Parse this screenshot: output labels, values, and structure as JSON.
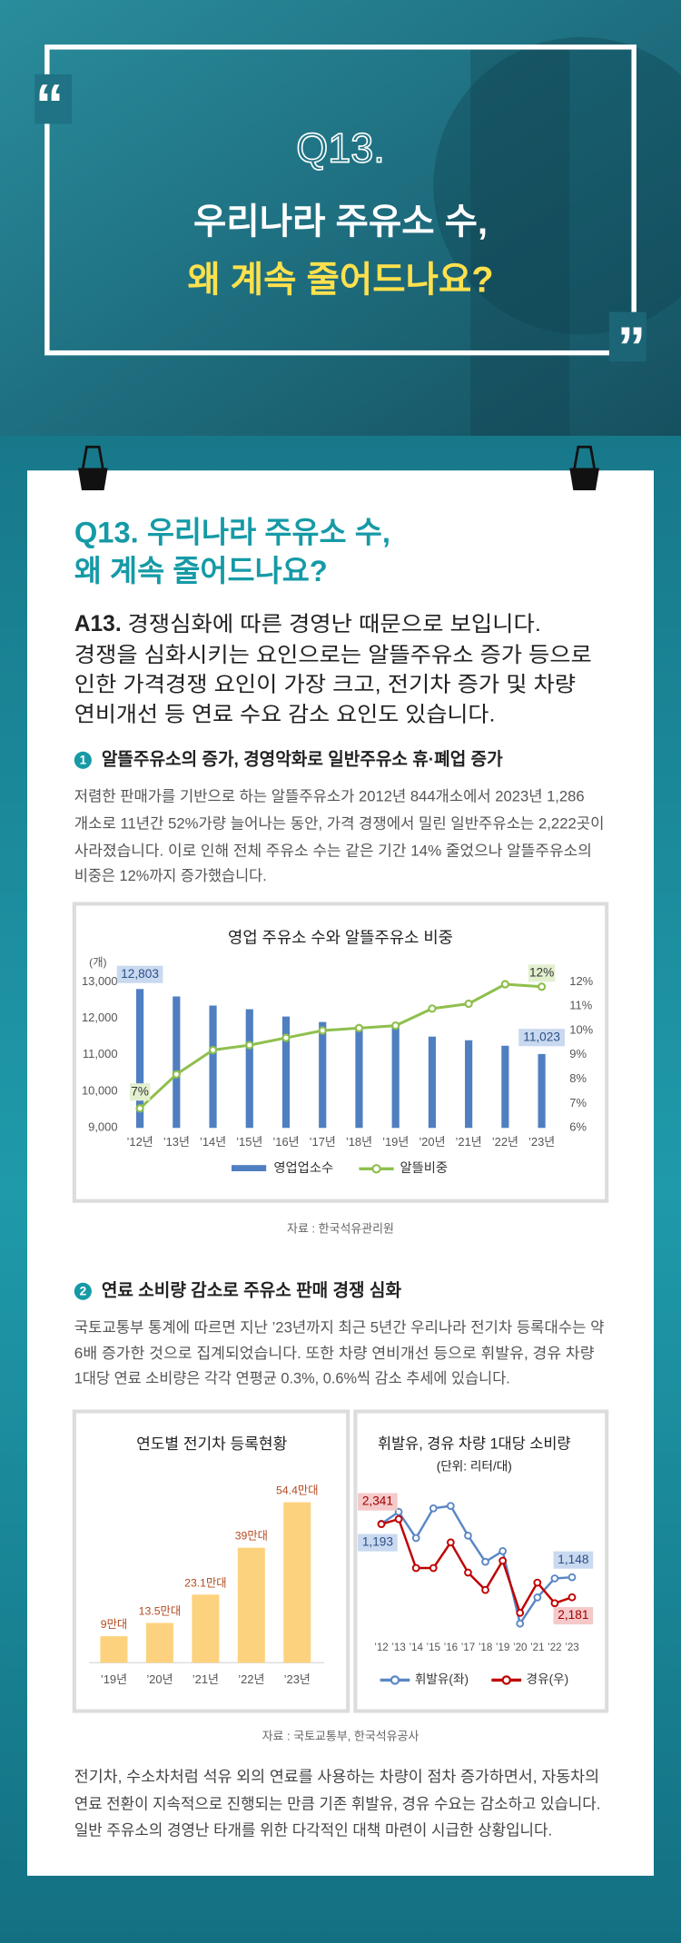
{
  "header": {
    "q": "Q13.",
    "title": [
      "우리나라 주유소 수,",
      "왜 계속 줄어드나요?"
    ]
  },
  "card": {
    "heading": [
      "Q13. 우리나라 주유소 수,",
      "왜 계속 줄어드나요?"
    ],
    "answer": {
      "label": "A13.",
      "lines": [
        "경쟁심화에 따른 경영난 때문으로 보입니다.",
        "경쟁을 심화시키는 요인으로는 알뜰주유소 증가 등으로",
        "인한 가격경쟁 요인이 가장 크고, 전기차 증가 및 차량",
        "연비개선 등 연료 수요 감소 요인도 있습니다."
      ]
    },
    "sections": [
      {
        "number": "1",
        "title": "알뜰주유소의 증가, 경영악화로 일반주유소 휴·폐업 증가",
        "lines": [
          "저렴한 판매가를 기반으로 하는 알뜰주유소가 2012년 844개소에서 2023년 1,286",
          "개소로 11년간 52%가량 늘어나는 동안, 가격 경쟁에서 밀린 일반주유소는 2,222곳이",
          "사라졌습니다. 이로 인해 전체 주유소 수는 같은 기간 14% 줄었으나 알뜰주유소의",
          "비중은 12%까지 증가했습니다."
        ],
        "source": "자료 : 한국석유관리원"
      },
      {
        "number": "2",
        "title": "연료 소비량 감소로 주유소 판매 경쟁 심화",
        "lines": [
          "국토교통부 통계에 따르면 지난 ’23년까지 최근 5년간 우리나라 전기차 등록대수는 약",
          "6배 증가한 것으로 집계되었습니다. 또한 차량 연비개선 등으로 휘발유, 경유 차량",
          "1대당 연료 소비량은 각각 연평균 0.3%, 0.6%씩 감소 추세에 있습니다."
        ],
        "source": "자료 : 국토교통부, 한국석유공사"
      }
    ],
    "closing": [
      "전기차, 수소차처럼 석유 외의 연료를 사용하는 차량이 점차 증가하면서, 자동차의",
      "연료 전환이 지속적으로 진행되는 만큼 기존 휘발유, 경유 수요는 감소하고 있습니다.",
      "일반 주유소의 경영난 타개를 위한 다각적인 대책 마련이 시급한 상황입니다."
    ]
  },
  "chart_data": [
    {
      "type": "combo",
      "title": "영업 주유소 수와 알뜰주유소 비중",
      "y_unit": "(개)",
      "categories": [
        "’12년",
        "’13년",
        "’14년",
        "’15년",
        "’16년",
        "’17년",
        "’18년",
        "’19년",
        "’20년",
        "’21년",
        "’22년",
        "’23년"
      ],
      "series": [
        {
          "name": "영업업소수",
          "type": "bar",
          "color": "#4f7fc0",
          "values": [
            12803,
            12600,
            12350,
            12250,
            12050,
            11900,
            11700,
            11750,
            11500,
            11400,
            11250,
            11023
          ],
          "value_labels": [
            "12,803",
            null,
            null,
            null,
            null,
            null,
            null,
            null,
            null,
            null,
            null,
            "11,023"
          ]
        },
        {
          "name": "알뜰비중",
          "type": "line",
          "axis": "y2",
          "color": "#8fbf4d",
          "values": [
            6.8,
            8.2,
            9.2,
            9.4,
            9.7,
            10.0,
            10.1,
            10.2,
            10.9,
            11.1,
            11.9,
            11.8
          ],
          "value_labels": [
            "7%",
            null,
            null,
            null,
            null,
            null,
            null,
            null,
            null,
            null,
            null,
            "12%"
          ]
        }
      ],
      "ylim": [
        9000,
        13000
      ],
      "yticks": [
        {
          "value": 9000,
          "label": "9,000"
        },
        {
          "value": 10000,
          "label": "10,000"
        },
        {
          "value": 11000,
          "label": "11,000"
        },
        {
          "value": 12000,
          "label": "12,000"
        },
        {
          "value": 13000,
          "label": "13,000"
        }
      ],
      "y2lim": [
        6,
        12
      ],
      "y2ticks": [
        {
          "value": 6,
          "label": "6%"
        },
        {
          "value": 7,
          "label": "7%"
        },
        {
          "value": 8,
          "label": "8%"
        },
        {
          "value": 9,
          "label": "9%"
        },
        {
          "value": 10,
          "label": "10%"
        },
        {
          "value": 11,
          "label": "11%"
        },
        {
          "value": 12,
          "label": "12%"
        }
      ]
    },
    {
      "type": "bar",
      "title": "연도별 전기차 등록현황",
      "categories": [
        "’19년",
        "’20년",
        "’21년",
        "’22년",
        "’23년"
      ],
      "values": [
        9,
        13.5,
        23.1,
        39,
        54.4
      ],
      "value_labels": [
        "9만대",
        "13.5만대",
        "23.1만대",
        "39만대",
        "54.4만대"
      ],
      "color": "#fdd27e",
      "ylim": [
        0,
        60
      ]
    },
    {
      "type": "line",
      "title": "휘발유, 경유 차량 1대당 소비량",
      "subtitle": "(단위: 리터/대)",
      "categories": [
        "’12",
        "’13",
        "’14",
        "’15",
        "’16",
        "’17",
        "’18",
        "’19",
        "’20",
        "’21",
        "’22",
        "’23"
      ],
      "series": [
        {
          "name": "휘발유(좌)",
          "color": "#5b87c5",
          "values": [
            1193,
            1203,
            1181,
            1206,
            1208,
            1183,
            1161,
            1170,
            1109,
            1131,
            1147,
            1148
          ],
          "value_labels": [
            "1,193",
            null,
            null,
            null,
            null,
            null,
            null,
            null,
            null,
            null,
            null,
            "1,148"
          ]
        },
        {
          "name": "경유(우)",
          "color": "#c00000",
          "axis": "y2",
          "values": [
            2341,
            2352,
            2245,
            2245,
            2301,
            2235,
            2197,
            2261,
            2147,
            2213,
            2168,
            2181
          ],
          "value_labels": [
            "2,341",
            null,
            null,
            null,
            null,
            null,
            null,
            null,
            null,
            null,
            null,
            "2,181"
          ]
        }
      ],
      "ylim": [
        1100,
        1225
      ],
      "y2lim": [
        2100,
        2425
      ]
    }
  ]
}
